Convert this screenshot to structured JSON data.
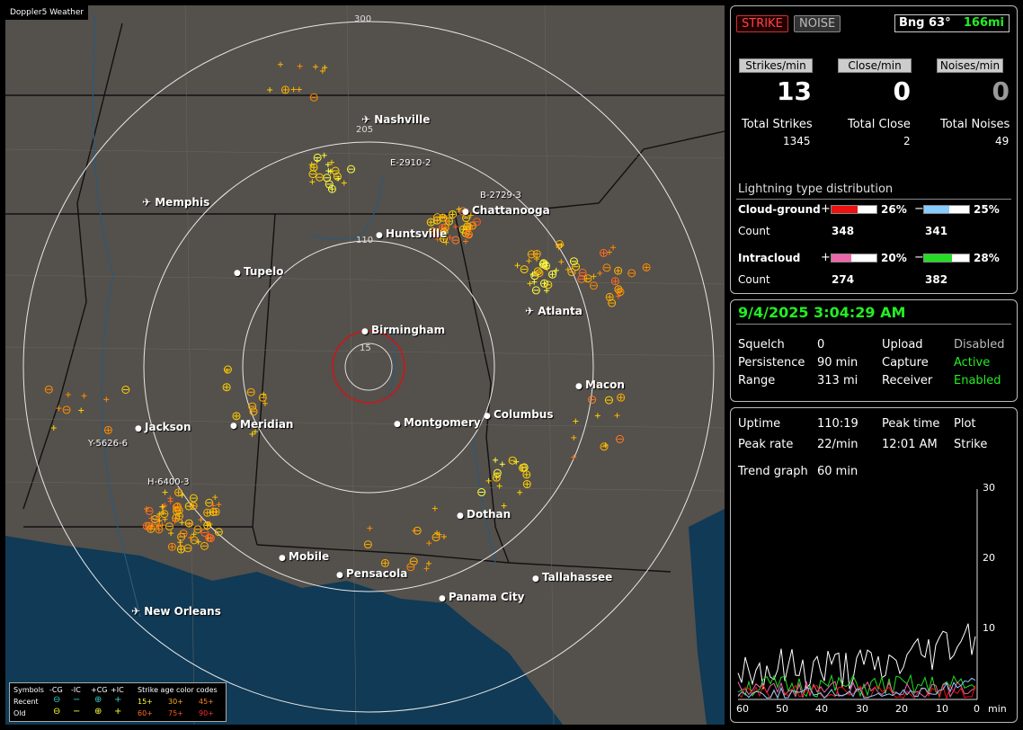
{
  "app": {
    "brand": "Doppler5 Weather"
  },
  "map": {
    "ring_labels": [
      "300",
      "205",
      "110",
      "15"
    ],
    "cities": [
      {
        "name": "Nashville",
        "airport": true
      },
      {
        "name": "Memphis",
        "airport": true
      },
      {
        "name": "Chattanooga",
        "airport": false
      },
      {
        "name": "Huntsville",
        "airport": false
      },
      {
        "name": "Tupelo",
        "airport": false
      },
      {
        "name": "Atlanta",
        "airport": true
      },
      {
        "name": "Birmingham",
        "airport": false
      },
      {
        "name": "Macon",
        "airport": false
      },
      {
        "name": "Jackson",
        "airport": false
      },
      {
        "name": "Meridian",
        "airport": false
      },
      {
        "name": "Montgomery",
        "airport": false
      },
      {
        "name": "Columbus",
        "airport": false
      },
      {
        "name": "Dothan",
        "airport": false
      },
      {
        "name": "Mobile",
        "airport": false
      },
      {
        "name": "Pensacola",
        "airport": false
      },
      {
        "name": "Tallahassee",
        "airport": false
      },
      {
        "name": "Panama City",
        "airport": false
      },
      {
        "name": "New Orleans",
        "airport": true
      }
    ],
    "storm_tags": [
      "E-2910-2",
      "B-2729-3",
      "Y-5626-6",
      "H-6400-3"
    ],
    "legend": {
      "symbols_label": "Symbols",
      "col_cg_neg": "-CG",
      "col_ic_neg": "-IC",
      "col_cg_pos": "+CG",
      "col_ic_pos": "+IC",
      "age_title": "Strike age color codes",
      "recent_label": "Recent",
      "old_label": "Old",
      "age_recent": [
        "15+",
        "30+",
        "45+"
      ],
      "age_old": [
        "60+",
        "75+",
        "90+"
      ]
    }
  },
  "status": {
    "strike_btn": "STRIKE",
    "noise_btn": "NOISE",
    "bearing_label": "Bng 63°",
    "bearing_distance": "166mi",
    "strikes_min_label": "Strikes/min",
    "close_min_label": "Close/min",
    "noises_min_label": "Noises/min",
    "strikes_min": "13",
    "close_min": "0",
    "noises_min": "0",
    "total_strikes_label": "Total Strikes",
    "total_close_label": "Total Close",
    "total_noises_label": "Total Noises",
    "total_strikes": "1345",
    "total_close": "2",
    "total_noises": "49",
    "dist_title": "Lightning type distribution",
    "cg_label": "Cloud-ground",
    "ic_label": "Intracloud",
    "count_label": "Count",
    "plus": "+",
    "minus": "−",
    "cg_pos_pct": "26%",
    "cg_neg_pct": "25%",
    "ic_pos_pct": "20%",
    "ic_neg_pct": "28%",
    "cg_pos_count": "348",
    "cg_neg_count": "341",
    "ic_pos_count": "274",
    "ic_neg_count": "382",
    "cg_pos_frac": 0.26,
    "cg_neg_frac": 0.25,
    "ic_pos_frac": 0.2,
    "ic_neg_frac": 0.28,
    "cg_pos_color": "#ee1111",
    "cg_neg_color": "#88ccff",
    "ic_pos_color": "#ee66aa",
    "ic_neg_color": "#22dd22"
  },
  "settings": {
    "datetime": "9/4/2025 3:04:29 AM",
    "squelch_label": "Squelch",
    "squelch": "0",
    "persistence_label": "Persistence",
    "persistence": "90 min",
    "range_label": "Range",
    "range": "313 mi",
    "upload_label": "Upload",
    "upload": "Disabled",
    "capture_label": "Capture",
    "capture": "Active",
    "receiver_label": "Receiver",
    "receiver": "Enabled"
  },
  "trend": {
    "uptime_label": "Uptime",
    "uptime": "110:19",
    "peak_time_label": "Peak time",
    "peak_time": "12:01 AM",
    "plot_label": "Plot",
    "plot": "Strike",
    "peak_rate_label": "Peak rate",
    "peak_rate": "22/min",
    "trend_label": "Trend graph",
    "trend_value": "60 min",
    "y_ticks": [
      "30",
      "20",
      "10"
    ],
    "x_ticks": [
      "60",
      "50",
      "40",
      "30",
      "20",
      "10",
      "0"
    ],
    "x_unit": "min"
  }
}
